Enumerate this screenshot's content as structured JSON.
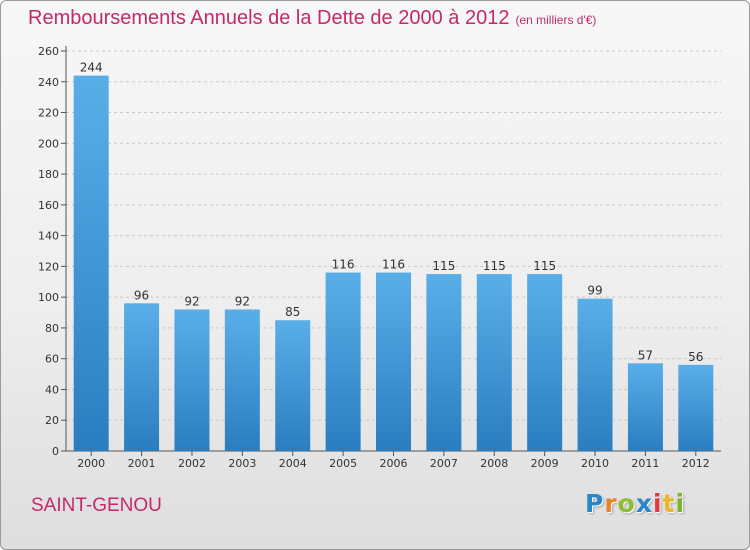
{
  "header": {
    "title": "Remboursements Annuels de la Dette de 2000 à 2012",
    "unit": "(en milliers d'€)"
  },
  "footer": {
    "commune": "SAINT-GENOU",
    "logo_text": "Proxiti"
  },
  "colors": {
    "title": "#c42a6a",
    "bar_top": "#5aaee8",
    "bar_bottom": "#2a7ec0",
    "grid": "#c8c8c8"
  },
  "chart_data": {
    "type": "bar",
    "title": "Remboursements Annuels de la Dette de 2000 à 2012",
    "xlabel": "",
    "ylabel": "",
    "categories": [
      "2000",
      "2001",
      "2002",
      "2003",
      "2004",
      "2005",
      "2006",
      "2007",
      "2008",
      "2009",
      "2010",
      "2011",
      "2012"
    ],
    "values": [
      244,
      96,
      92,
      92,
      85,
      116,
      116,
      115,
      115,
      115,
      99,
      57,
      56
    ],
    "ylim": [
      0,
      260
    ],
    "yticks": [
      0,
      20,
      40,
      60,
      80,
      100,
      120,
      140,
      160,
      180,
      200,
      220,
      240,
      260
    ],
    "grid": true,
    "legend": "none"
  }
}
